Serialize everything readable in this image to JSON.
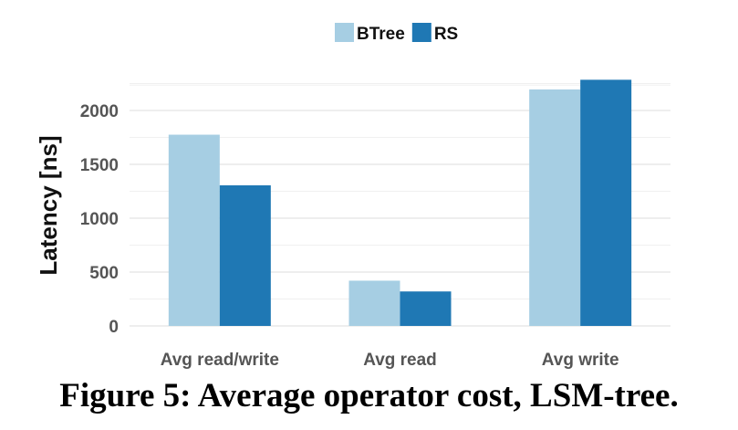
{
  "chart_data": {
    "type": "bar",
    "categories": [
      "Avg read/write",
      "Avg read",
      "Avg write"
    ],
    "series": [
      {
        "name": "BTree",
        "color": "#a6cee3",
        "values": [
          1775,
          420,
          2195
        ]
      },
      {
        "name": "RS",
        "color": "#1f78b4",
        "values": [
          1305,
          320,
          2285
        ]
      }
    ],
    "xlabel": "",
    "ylabel": "Latency [ns]",
    "ylim": [
      0,
      2300
    ],
    "yticks": [
      0,
      500,
      1000,
      1500,
      2000
    ],
    "grid": true,
    "legend_position": "top-center"
  },
  "caption": "Figure 5: Average operator cost, LSM-tree."
}
